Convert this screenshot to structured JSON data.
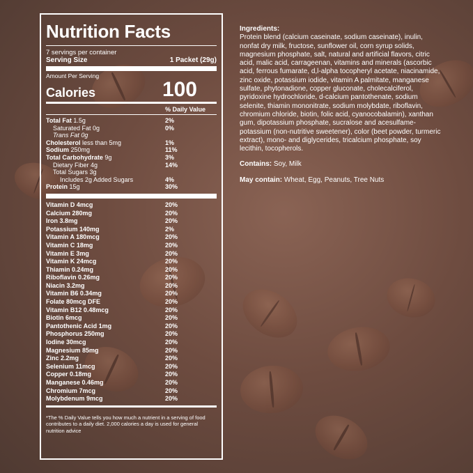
{
  "panel": {
    "title": "Nutrition Facts",
    "servings": "7 servings per container",
    "serving_size_label": "Serving Size",
    "serving_size_value": "1 Packet (29g)",
    "amount_per_serving": "Amount Per Serving",
    "calories_label": "Calories",
    "calories_value": "100",
    "dv_header": "% Daily Value",
    "nutrients": [
      {
        "bold": "Total Fat",
        "rest": " 1.5g",
        "dv": "2%"
      },
      {
        "bold": "",
        "rest": "Saturated Fat 0g",
        "dv": "0%"
      },
      {
        "bold": "",
        "rest": "Trans Fat 0g",
        "dv": ""
      },
      {
        "bold": "Cholesterol",
        "rest": " less than 5mg",
        "dv": "1%"
      },
      {
        "bold": "Sodium",
        "rest": " 250mg",
        "dv": "11%"
      },
      {
        "bold": "Total Carbohydrate",
        "rest": " 9g",
        "dv": "3%"
      },
      {
        "bold": "",
        "rest": "Dietary Fiber 4g",
        "dv": "14%"
      },
      {
        "bold": "",
        "rest": "Total Sugars 3g",
        "dv": ""
      },
      {
        "bold": "",
        "rest": "Includes 2g Added Sugars",
        "dv": "4%"
      },
      {
        "bold": "Protein",
        "rest": " 15g",
        "dv": "30%"
      }
    ],
    "vitamins": [
      {
        "name": "Vitamin D 4mcg",
        "dv": "20%"
      },
      {
        "name": "Calcium 280mg",
        "dv": "20%"
      },
      {
        "name": "Iron 3.8mg",
        "dv": "20%"
      },
      {
        "name": "Potassium 140mg",
        "dv": "2%"
      },
      {
        "name": "Vitamin A 180mcg",
        "dv": "20%"
      },
      {
        "name": "Vitamin C 18mg",
        "dv": "20%"
      },
      {
        "name": "Vitamin E 3mg",
        "dv": "20%"
      },
      {
        "name": "Vitamin K 24mcg",
        "dv": "20%"
      },
      {
        "name": "Thiamin 0.24mg",
        "dv": "20%"
      },
      {
        "name": "Riboflavin 0.26mg",
        "dv": "20%"
      },
      {
        "name": "Niacin 3.2mg",
        "dv": "20%"
      },
      {
        "name": "Vitamin B6 0.34mg",
        "dv": "20%"
      },
      {
        "name": "Folate 80mcg DFE",
        "dv": "20%"
      },
      {
        "name": "Vitamin B12 0.48mcg",
        "dv": "20%"
      },
      {
        "name": "Biotin 6mcg",
        "dv": "20%"
      },
      {
        "name": "Pantothenic Acid 1mg",
        "dv": "20%"
      },
      {
        "name": "Phosphorus 250mg",
        "dv": "20%"
      },
      {
        "name": "Iodine 30mcg",
        "dv": "20%"
      },
      {
        "name": "Magnesium 85mg",
        "dv": "20%"
      },
      {
        "name": "Zinc 2.2mg",
        "dv": "20%"
      },
      {
        "name": "Selenium 11mcg",
        "dv": "20%"
      },
      {
        "name": "Copper 0.18mg",
        "dv": "20%"
      },
      {
        "name": "Manganese 0.46mg",
        "dv": "20%"
      },
      {
        "name": "Chromium 7mcg",
        "dv": "20%"
      },
      {
        "name": "Molybdenum 9mcg",
        "dv": "20%"
      }
    ],
    "footnote": "*The % Daily Value tells you how much a nutrient in a serving of food contributes to a daily diet. 2,000 calories a day is used for general nutrition advice"
  },
  "ingredients": {
    "label": "Ingredients:",
    "text": "Protein blend (calcium caseinate, sodium caseinate), inulin, nonfat dry milk, fructose, sunflower oil, corn syrup solids, magnesium phosphate, salt, natural and artificial flavors, citric acid, malic acid, carrageenan, vitamins and minerals (ascorbic acid, ferrous fumarate, d,l-alpha tocopheryl acetate, niacinamide, zinc oxide, potassium iodide, vitamin A palmitate, manganese sulfate, phytonadione, copper gluconate, cholecalciferol, pyridoxine hydrochloride, d-calcium pantothenate, sodium selenite, thiamin mononitrate, sodium molybdate, riboflavin, chromium chloride, biotin, folic acid, cyanocobalamin), xanthan gum, dipotassium phosphate, sucralose and acesulfame-potassium (non-nutritive sweetener), color (beet powder, turmeric extract), mono- and diglycerides, tricalcium phosphate, soy lecithin, tocopherols."
  },
  "contains": {
    "label": "Contains:",
    "text": " Soy, Milk"
  },
  "may_contain": {
    "label": "May contain:",
    "text": " Wheat, Egg, Peanuts, Tree Nuts"
  }
}
